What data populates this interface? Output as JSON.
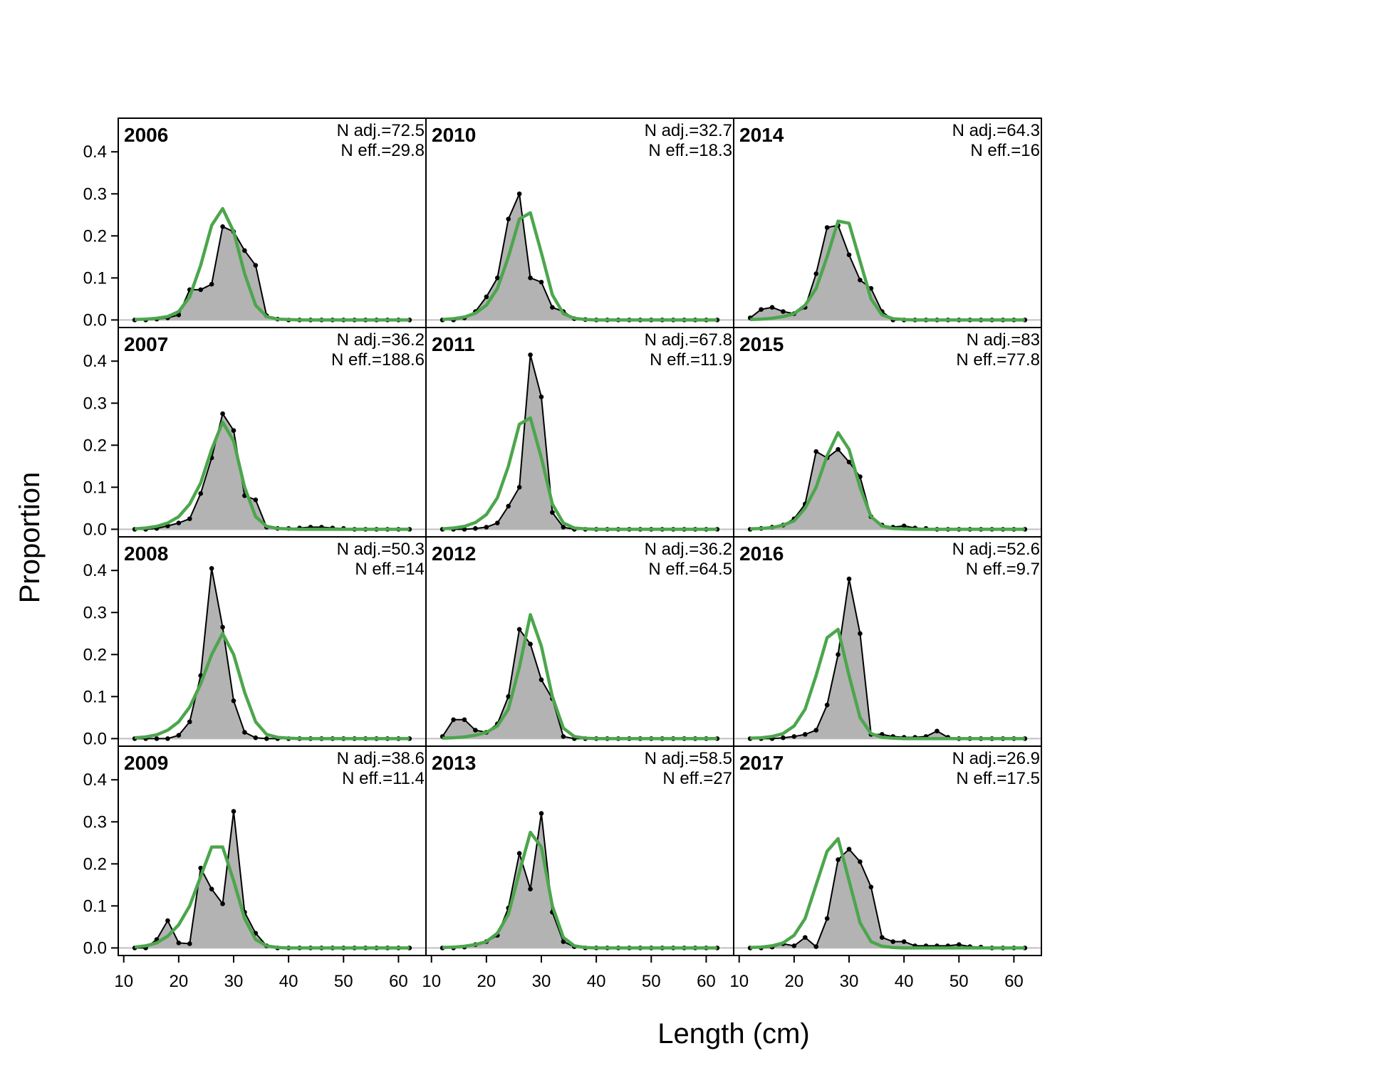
{
  "chart_data": {
    "type": "area",
    "xlabel": "Length (cm)",
    "ylabel": "Proportion",
    "xlim": [
      9,
      65
    ],
    "ylim": [
      -0.018,
      0.48
    ],
    "x_ticks": [
      10,
      20,
      30,
      40,
      50,
      60
    ],
    "y_ticks": [
      0.0,
      0.1,
      0.2,
      0.3,
      0.4
    ],
    "x": [
      12,
      14,
      16,
      18,
      20,
      22,
      24,
      26,
      28,
      30,
      32,
      34,
      36,
      38,
      40,
      42,
      44,
      46,
      48,
      50,
      52,
      54,
      56,
      58,
      60,
      62
    ],
    "series_styles": {
      "observed": {
        "fill": "#b3b3b3",
        "line": "#000000"
      },
      "expected": {
        "line": "#4ca64c"
      }
    },
    "panels": [
      {
        "year": "2006",
        "n_adj": "N adj.=72.5",
        "n_eff": "N eff.=29.8",
        "observed": [
          0,
          0,
          0.002,
          0.005,
          0.012,
          0.072,
          0.072,
          0.085,
          0.222,
          0.21,
          0.165,
          0.13,
          0.01,
          0.002,
          0,
          0,
          0,
          0,
          0,
          0,
          0,
          0,
          0,
          0,
          0,
          0
        ],
        "expected": [
          0.001,
          0.002,
          0.004,
          0.008,
          0.02,
          0.055,
          0.13,
          0.225,
          0.265,
          0.21,
          0.11,
          0.035,
          0.008,
          0.002,
          0.001,
          0,
          0,
          0,
          0,
          0,
          0,
          0,
          0,
          0,
          0,
          0
        ]
      },
      {
        "year": "2007",
        "n_adj": "N adj.=36.2",
        "n_eff": "N eff.=188.6",
        "observed": [
          0,
          0,
          0.002,
          0.008,
          0.015,
          0.025,
          0.085,
          0.17,
          0.275,
          0.235,
          0.08,
          0.07,
          0.005,
          0.002,
          0.002,
          0.003,
          0.005,
          0.005,
          0.003,
          0.002,
          0,
          0,
          0,
          0,
          0,
          0
        ],
        "expected": [
          0.001,
          0.003,
          0.007,
          0.015,
          0.03,
          0.06,
          0.11,
          0.19,
          0.255,
          0.21,
          0.1,
          0.03,
          0.007,
          0.002,
          0.001,
          0,
          0,
          0,
          0,
          0,
          0,
          0,
          0,
          0,
          0,
          0
        ]
      },
      {
        "year": "2008",
        "n_adj": "N adj.=50.3",
        "n_eff": "N eff.=14",
        "observed": [
          0,
          0,
          0,
          0,
          0.008,
          0.04,
          0.15,
          0.405,
          0.265,
          0.09,
          0.015,
          0.002,
          0,
          0,
          0,
          0,
          0,
          0,
          0,
          0,
          0,
          0,
          0,
          0,
          0,
          0
        ],
        "expected": [
          0.002,
          0.004,
          0.009,
          0.02,
          0.04,
          0.075,
          0.13,
          0.2,
          0.25,
          0.2,
          0.11,
          0.04,
          0.01,
          0.003,
          0.001,
          0,
          0,
          0,
          0,
          0,
          0,
          0,
          0,
          0,
          0,
          0
        ]
      },
      {
        "year": "2009",
        "n_adj": "N adj.=38.6",
        "n_eff": "N eff.=11.4",
        "observed": [
          0,
          0,
          0.02,
          0.065,
          0.012,
          0.01,
          0.19,
          0.14,
          0.105,
          0.325,
          0.085,
          0.035,
          0.005,
          0,
          0,
          0,
          0,
          0,
          0,
          0,
          0,
          0,
          0,
          0,
          0,
          0
        ],
        "expected": [
          0.002,
          0.005,
          0.012,
          0.028,
          0.055,
          0.1,
          0.17,
          0.24,
          0.24,
          0.16,
          0.07,
          0.02,
          0.005,
          0.001,
          0,
          0,
          0,
          0,
          0,
          0,
          0,
          0,
          0,
          0,
          0,
          0
        ]
      },
      {
        "year": "2010",
        "n_adj": "N adj.=32.7",
        "n_eff": "N eff.=18.3",
        "observed": [
          0,
          0,
          0.005,
          0.02,
          0.055,
          0.1,
          0.24,
          0.3,
          0.1,
          0.09,
          0.03,
          0.02,
          0.003,
          0.001,
          0,
          0,
          0,
          0,
          0,
          0,
          0,
          0,
          0,
          0,
          0,
          0
        ],
        "expected": [
          0.001,
          0.003,
          0.007,
          0.016,
          0.035,
          0.075,
          0.15,
          0.24,
          0.255,
          0.16,
          0.06,
          0.015,
          0.004,
          0.001,
          0,
          0,
          0,
          0,
          0,
          0,
          0,
          0,
          0,
          0,
          0,
          0
        ]
      },
      {
        "year": "2011",
        "n_adj": "N adj.=67.8",
        "n_eff": "N eff.=11.9",
        "observed": [
          0,
          0,
          0,
          0.002,
          0.005,
          0.015,
          0.055,
          0.1,
          0.415,
          0.315,
          0.04,
          0.005,
          0,
          0,
          0,
          0,
          0,
          0,
          0,
          0,
          0,
          0,
          0,
          0,
          0,
          0
        ],
        "expected": [
          0.001,
          0.003,
          0.007,
          0.016,
          0.035,
          0.075,
          0.15,
          0.25,
          0.265,
          0.17,
          0.06,
          0.015,
          0.003,
          0.001,
          0,
          0,
          0,
          0,
          0,
          0,
          0,
          0,
          0,
          0,
          0,
          0
        ]
      },
      {
        "year": "2012",
        "n_adj": "N adj.=36.2",
        "n_eff": "N eff.=64.5",
        "observed": [
          0.005,
          0.045,
          0.045,
          0.02,
          0.015,
          0.035,
          0.1,
          0.26,
          0.225,
          0.14,
          0.095,
          0.005,
          0,
          0,
          0,
          0,
          0,
          0,
          0,
          0,
          0,
          0,
          0,
          0,
          0,
          0
        ],
        "expected": [
          0.001,
          0.002,
          0.004,
          0.008,
          0.015,
          0.03,
          0.07,
          0.17,
          0.295,
          0.22,
          0.1,
          0.025,
          0.005,
          0.001,
          0,
          0,
          0,
          0,
          0,
          0,
          0,
          0,
          0,
          0,
          0,
          0
        ]
      },
      {
        "year": "2013",
        "n_adj": "N adj.=58.5",
        "n_eff": "N eff.=27",
        "observed": [
          0,
          0,
          0.002,
          0.008,
          0.015,
          0.03,
          0.095,
          0.225,
          0.14,
          0.32,
          0.085,
          0.015,
          0.003,
          0,
          0,
          0,
          0,
          0,
          0,
          0,
          0,
          0,
          0,
          0,
          0,
          0
        ],
        "expected": [
          0.001,
          0.002,
          0.004,
          0.008,
          0.015,
          0.035,
          0.08,
          0.18,
          0.275,
          0.24,
          0.1,
          0.025,
          0.005,
          0.001,
          0,
          0,
          0,
          0,
          0,
          0,
          0,
          0,
          0,
          0,
          0,
          0
        ]
      },
      {
        "year": "2014",
        "n_adj": "N adj.=64.3",
        "n_eff": "N eff.=16",
        "observed": [
          0.005,
          0.025,
          0.03,
          0.02,
          0.015,
          0.03,
          0.11,
          0.22,
          0.225,
          0.155,
          0.095,
          0.075,
          0.02,
          0,
          0,
          0,
          0,
          0,
          0,
          0,
          0,
          0,
          0,
          0,
          0,
          0
        ],
        "expected": [
          0.001,
          0.002,
          0.004,
          0.008,
          0.015,
          0.035,
          0.075,
          0.15,
          0.235,
          0.23,
          0.14,
          0.05,
          0.012,
          0.003,
          0.001,
          0,
          0,
          0,
          0,
          0,
          0,
          0,
          0,
          0,
          0,
          0
        ]
      },
      {
        "year": "2015",
        "n_adj": "N adj.=83",
        "n_eff": "N eff.=77.8",
        "observed": [
          0,
          0.002,
          0.005,
          0.01,
          0.025,
          0.06,
          0.185,
          0.17,
          0.19,
          0.16,
          0.125,
          0.03,
          0.01,
          0.005,
          0.008,
          0.003,
          0.002,
          0,
          0,
          0,
          0,
          0,
          0,
          0,
          0,
          0
        ],
        "expected": [
          0.001,
          0.002,
          0.004,
          0.01,
          0.02,
          0.05,
          0.1,
          0.175,
          0.23,
          0.19,
          0.1,
          0.03,
          0.008,
          0.002,
          0.001,
          0,
          0,
          0,
          0,
          0,
          0,
          0,
          0,
          0,
          0,
          0
        ]
      },
      {
        "year": "2016",
        "n_adj": "N adj.=52.6",
        "n_eff": "N eff.=9.7",
        "observed": [
          0,
          0,
          0,
          0.002,
          0.005,
          0.01,
          0.02,
          0.08,
          0.2,
          0.38,
          0.25,
          0.01,
          0.01,
          0.005,
          0.003,
          0.003,
          0.005,
          0.018,
          0.003,
          0,
          0,
          0,
          0,
          0,
          0,
          0
        ],
        "expected": [
          0.001,
          0.002,
          0.005,
          0.012,
          0.03,
          0.07,
          0.15,
          0.24,
          0.26,
          0.15,
          0.05,
          0.012,
          0.003,
          0.001,
          0,
          0,
          0,
          0,
          0,
          0,
          0,
          0,
          0,
          0,
          0,
          0
        ]
      },
      {
        "year": "2017",
        "n_adj": "N adj.=26.9",
        "n_eff": "N eff.=17.5",
        "observed": [
          0,
          0,
          0.002,
          0.01,
          0.005,
          0.025,
          0.003,
          0.07,
          0.21,
          0.235,
          0.205,
          0.145,
          0.025,
          0.015,
          0.015,
          0.005,
          0.005,
          0.005,
          0.005,
          0.008,
          0.003,
          0.002,
          0,
          0,
          0,
          0
        ],
        "expected": [
          0.001,
          0.002,
          0.005,
          0.012,
          0.03,
          0.07,
          0.15,
          0.23,
          0.26,
          0.16,
          0.06,
          0.015,
          0.004,
          0.001,
          0,
          0,
          0,
          0,
          0,
          0,
          0,
          0,
          0,
          0,
          0,
          0
        ]
      }
    ]
  }
}
